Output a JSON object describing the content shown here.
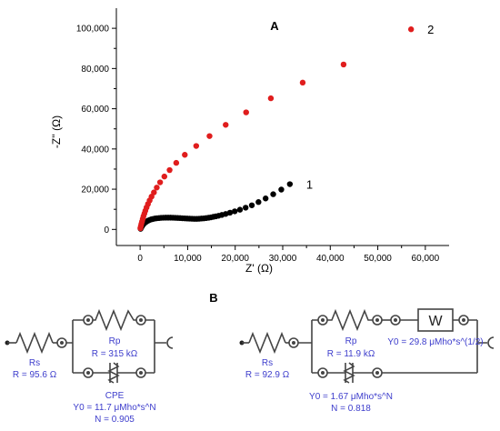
{
  "chart_data": {
    "type": "scatter",
    "panel_label": "A",
    "xlabel": "Z' (Ω)",
    "ylabel": "-Z'' (Ω)",
    "xlim": [
      -5000,
      65000
    ],
    "ylim": [
      -8000,
      110000
    ],
    "x_ticks": [
      0,
      10000,
      20000,
      30000,
      40000,
      50000,
      60000
    ],
    "x_tick_labels": [
      "0",
      "10,000",
      "20,000",
      "30,000",
      "40,000",
      "50,000",
      "60,000"
    ],
    "y_ticks": [
      0,
      20000,
      40000,
      60000,
      80000,
      100000
    ],
    "y_tick_labels": [
      "0",
      "20,000",
      "40,000",
      "60,000",
      "80,000",
      "100,000"
    ],
    "grid": false,
    "series": [
      {
        "name": "1",
        "color": "#000000",
        "x": [
          100,
          200,
          350,
          500,
          700,
          900,
          1150,
          1400,
          1700,
          2000,
          2350,
          2700,
          3100,
          3500,
          3950,
          4400,
          4900,
          5400,
          5900,
          6400,
          6900,
          7400,
          7900,
          8400,
          8900,
          9400,
          9900,
          10400,
          10900,
          11400,
          11900,
          12400,
          12900,
          13400,
          13900,
          14400,
          14900,
          15400,
          15900,
          16500,
          17200,
          18000,
          18900,
          19900,
          21000,
          22200,
          23500,
          24900,
          26400,
          28000,
          29700,
          31500
        ],
        "y": [
          300,
          800,
          1400,
          2000,
          2600,
          3100,
          3600,
          4000,
          4400,
          4700,
          5000,
          5200,
          5400,
          5550,
          5650,
          5750,
          5800,
          5850,
          5850,
          5850,
          5800,
          5750,
          5700,
          5650,
          5550,
          5500,
          5400,
          5350,
          5300,
          5250,
          5250,
          5300,
          5400,
          5500,
          5650,
          5800,
          6000,
          6250,
          6500,
          6800,
          7200,
          7700,
          8300,
          9000,
          9800,
          10800,
          12000,
          13600,
          15400,
          17500,
          19800,
          22500
        ]
      },
      {
        "name": "2",
        "color": "#e01d1d",
        "x": [
          50,
          150,
          250,
          400,
          550,
          700,
          900,
          1100,
          1350,
          1650,
          2000,
          2400,
          2900,
          3500,
          4200,
          5100,
          6200,
          7600,
          9400,
          11800,
          14600,
          18000,
          22300,
          27500,
          34200,
          42800,
          57000
        ],
        "y": [
          600,
          1600,
          2700,
          3900,
          5200,
          6500,
          7900,
          9300,
          10900,
          12600,
          14400,
          16300,
          18400,
          20800,
          23400,
          26300,
          29500,
          33100,
          37100,
          41500,
          46400,
          52000,
          58200,
          65200,
          73000,
          82000,
          99500
        ]
      }
    ]
  },
  "circuits": {
    "panel_label": "B",
    "left": {
      "rs_name": "Rs",
      "rs_value": "R = 95.6 Ω",
      "rp_name": "Rp",
      "rp_value": "R = 315 kΩ",
      "cpe_name": "CPE",
      "cpe_y0": "Y0 = 11.7 μMho*s^N",
      "cpe_n": "N = 0.905"
    },
    "right": {
      "rs_name": "Rs",
      "rs_value": "R = 92.9 Ω",
      "rp_name": "Rp",
      "rp_value": "R = 11.9 kΩ",
      "w_label": "W",
      "w_y0": "Y0 = 29.8 μMho*s^(1/2)",
      "cpe_y0": "Y0 = 1.67 μMho*s^N",
      "cpe_n": "N = 0.818"
    }
  }
}
